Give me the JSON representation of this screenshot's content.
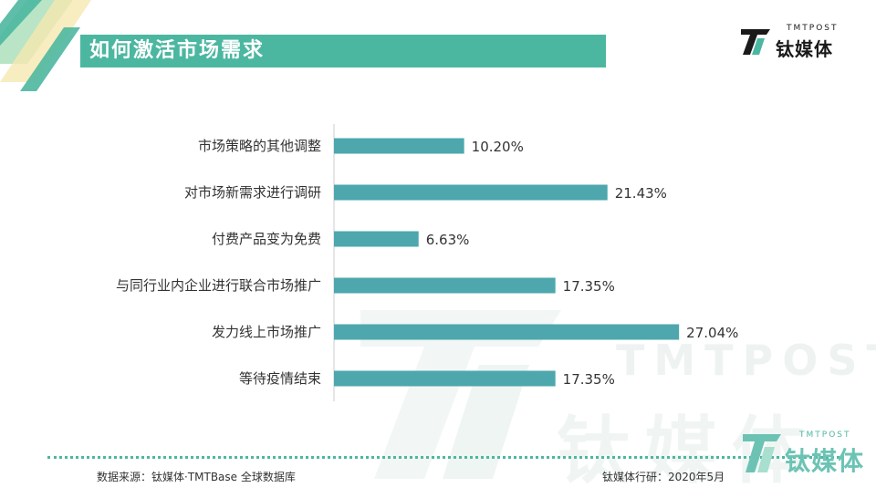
{
  "header": {
    "title": "如何激活市场需求",
    "logo_sub": "TMTPOST",
    "logo_main": "钛媒体"
  },
  "watermark": {
    "text1": "TMTPOST",
    "text2": "钛媒体"
  },
  "footer": {
    "source": "数据来源：钛媒体·TMTBase 全球数据库",
    "credit": "钛媒体行研：2020年5月",
    "logo_sub": "TMTPOST",
    "logo_main": "钛媒体"
  },
  "colors": {
    "accent": "#4cb7a0",
    "bar": "#4da7ad",
    "deco_light": "#a8dfb8",
    "deco_yellow": "#f5e8b0"
  },
  "chart_data": {
    "type": "bar",
    "orientation": "horizontal",
    "categories": [
      "市场策略的其他调整",
      "对市场新需求进行调研",
      "付费产品变为免费",
      "与同行业内企业进行联合市场推广",
      "发力线上市场推广",
      "等待疫情结束"
    ],
    "values": [
      10.2,
      21.43,
      6.63,
      17.35,
      27.04,
      17.35
    ],
    "labels": [
      "10.20%",
      "21.43%",
      "6.63%",
      "17.35%",
      "27.04%",
      "17.35%"
    ],
    "unit": "%",
    "xlim": [
      0,
      28.6
    ],
    "grid": false,
    "legend": "none"
  }
}
